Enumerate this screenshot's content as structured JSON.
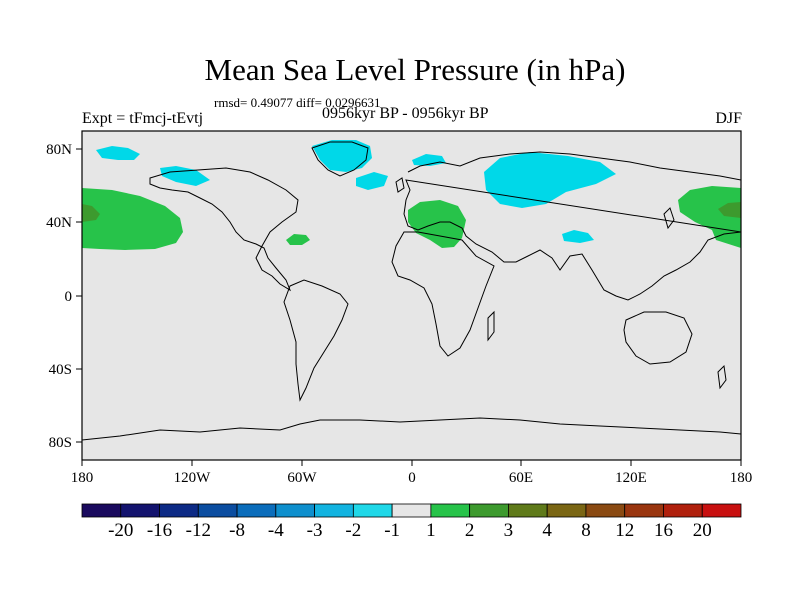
{
  "title": "Mean Sea Level Pressure (in hPa)",
  "stats": "rmsd= 0.49077 diff= 0.0296631",
  "experiment": "Expt = tFmcj-tEvtj",
  "period": "0956kyr BP - 0956kyr BP",
  "season": "DJF",
  "map": {
    "x_ticks": [
      "180",
      "120W",
      "60W",
      "0",
      "60E",
      "120E",
      "180"
    ],
    "y_ticks": [
      "80N",
      "40N",
      "0",
      "40S",
      "80S"
    ],
    "background_color": "#e6e6e6"
  },
  "colorbar": {
    "labels": [
      "-20",
      "-16",
      "-12",
      "-8",
      "-4",
      "-3",
      "-2",
      "-1",
      "1",
      "2",
      "3",
      "4",
      "8",
      "12",
      "16",
      "20"
    ],
    "colors": [
      "#1a0a5e",
      "#13136e",
      "#0d2a85",
      "#0b4da0",
      "#0b6dbb",
      "#0e8fcd",
      "#12b3e0",
      "#20d8e8",
      "#e6e6e6",
      "#27c34a",
      "#3d9a2e",
      "#5f7a1a",
      "#7a6614",
      "#8a4a12",
      "#99350f",
      "#b0200d",
      "#c81010"
    ]
  },
  "anomaly_colors": {
    "cyan": "#00d8e8",
    "green": "#27c34a",
    "dark_green": "#3d9a2e"
  }
}
